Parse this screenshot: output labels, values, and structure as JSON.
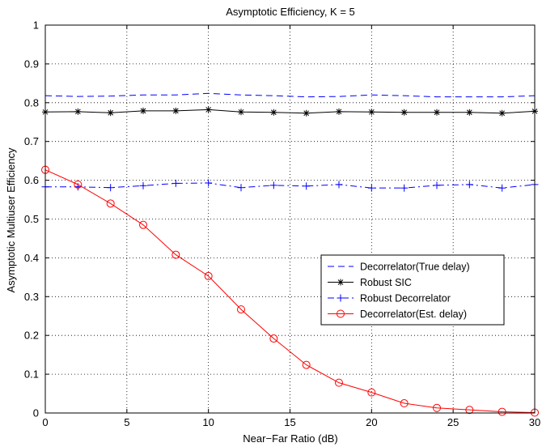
{
  "chart_data": {
    "type": "line",
    "title": "Asymptotic Efficiency, K = 5",
    "xlabel": "Near−Far Ratio (dB)",
    "ylabel": "Asymptotic Multiuser Efficiency",
    "xlim": [
      0,
      30
    ],
    "ylim": [
      0,
      1
    ],
    "xticks": [
      0,
      5,
      10,
      15,
      20,
      25,
      30
    ],
    "xtick_labels": [
      "0",
      "5",
      "10",
      "15",
      "20",
      "25",
      "30"
    ],
    "yticks": [
      0,
      0.1,
      0.2,
      0.3,
      0.4,
      0.5,
      0.6,
      0.7,
      0.8,
      0.9,
      1
    ],
    "ytick_labels": [
      "0",
      "0.1",
      "0.2",
      "0.3",
      "0.4",
      "0.5",
      "0.6",
      "0.7",
      "0.8",
      "0.9",
      "1"
    ],
    "grid": true,
    "legend_position": "center-right",
    "x": [
      0,
      2,
      4,
      6,
      8,
      10,
      12,
      14,
      16,
      18,
      20,
      22,
      24,
      26,
      28,
      30
    ],
    "series": [
      {
        "name": "Decorrelator(True delay)",
        "color": "#0000ff",
        "line": "dashed",
        "marker": "none",
        "values": [
          0.818,
          0.816,
          0.817,
          0.82,
          0.82,
          0.824,
          0.82,
          0.818,
          0.815,
          0.816,
          0.82,
          0.818,
          0.815,
          0.815,
          0.815,
          0.818
        ]
      },
      {
        "name": "Robust SIC",
        "color": "#000000",
        "line": "solid",
        "marker": "star",
        "values": [
          0.776,
          0.777,
          0.774,
          0.779,
          0.779,
          0.782,
          0.776,
          0.775,
          0.773,
          0.777,
          0.776,
          0.775,
          0.775,
          0.775,
          0.773,
          0.778
        ]
      },
      {
        "name": "Robust Decorrelator",
        "color": "#0000ff",
        "line": "dashdot",
        "marker": "plus",
        "values": [
          0.583,
          0.583,
          0.581,
          0.586,
          0.592,
          0.593,
          0.581,
          0.587,
          0.585,
          0.589,
          0.58,
          0.58,
          0.587,
          0.589,
          0.58,
          0.589
        ]
      },
      {
        "name": "Decorrelator(Est. delay)",
        "color": "#ff0000",
        "line": "solid",
        "marker": "circle",
        "values": [
          0.627,
          0.589,
          0.54,
          0.485,
          0.408,
          0.353,
          0.267,
          0.192,
          0.124,
          0.078,
          0.053,
          0.025,
          0.013,
          0.008,
          0.003,
          0.001
        ]
      }
    ]
  }
}
